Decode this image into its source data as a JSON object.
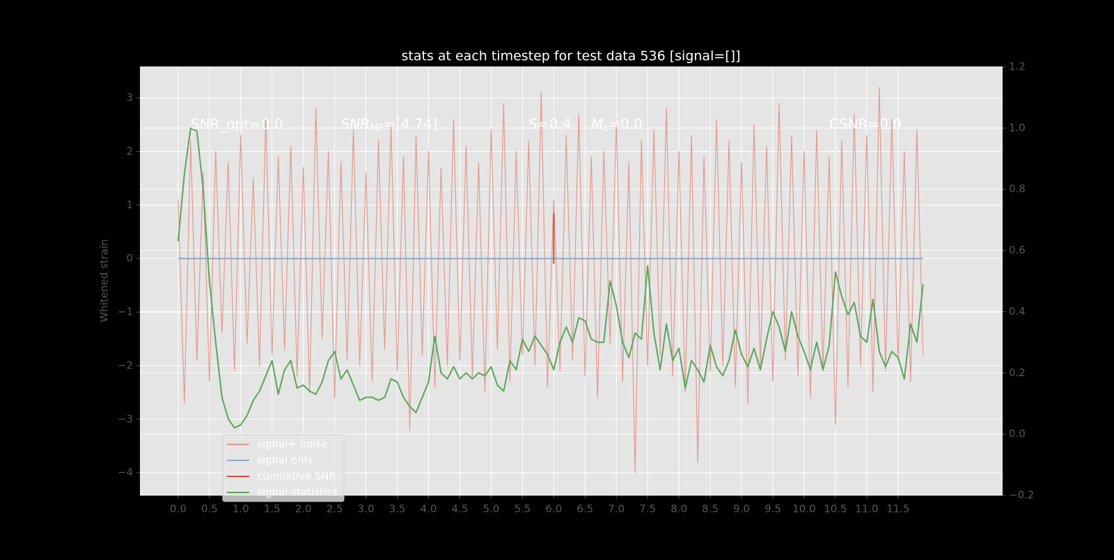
{
  "chart_data": {
    "type": "line",
    "title": "stats at each timestep for test data 536 [signal=[]]",
    "ylabel": "Whitened strain",
    "annotations": [
      {
        "text": "SNR_opt=0.0"
      },
      {
        "text": "SNR",
        "sub": "MF",
        "after": "=[4.74]"
      },
      {
        "text": "S",
        "after": "=0.4"
      },
      {
        "text": "M",
        "sub": "c",
        "after": "=0.0"
      },
      {
        "text": "CSNR=0.0"
      }
    ],
    "x": [
      0.0,
      0.1,
      0.2,
      0.3,
      0.4,
      0.5,
      0.6,
      0.7,
      0.8,
      0.9,
      1.0,
      1.1,
      1.2,
      1.3,
      1.4,
      1.5,
      1.6,
      1.7,
      1.8,
      1.9,
      2.0,
      2.1,
      2.2,
      2.3,
      2.4,
      2.5,
      2.6,
      2.7,
      2.8,
      2.9,
      3.0,
      3.1,
      3.2,
      3.3,
      3.4,
      3.5,
      3.6,
      3.7,
      3.8,
      3.9,
      4.0,
      4.1,
      4.2,
      4.3,
      4.4,
      4.5,
      4.6,
      4.7,
      4.8,
      4.9,
      5.0,
      5.1,
      5.2,
      5.3,
      5.4,
      5.5,
      5.6,
      5.7,
      5.8,
      5.9,
      6.0,
      6.1,
      6.2,
      6.3,
      6.4,
      6.5,
      6.6,
      6.7,
      6.8,
      6.9,
      7.0,
      7.1,
      7.2,
      7.3,
      7.4,
      7.5,
      7.6,
      7.7,
      7.8,
      7.9,
      8.0,
      8.1,
      8.2,
      8.3,
      8.4,
      8.5,
      8.6,
      8.7,
      8.8,
      8.9,
      9.0,
      9.1,
      9.2,
      9.3,
      9.4,
      9.5,
      9.6,
      9.7,
      9.8,
      9.9,
      10.0,
      10.1,
      10.2,
      10.3,
      10.4,
      10.5,
      10.6,
      10.7,
      10.8,
      10.9,
      11.0,
      11.1,
      11.2,
      11.3,
      11.4,
      11.5,
      11.6,
      11.7,
      11.8,
      11.9
    ],
    "series": [
      {
        "name": "signal+ noise",
        "color": "#e49a8c",
        "values": [
          1.1,
          -2.7,
          2.2,
          -1.9,
          1.6,
          -2.3,
          2.0,
          -1.4,
          1.8,
          -2.1,
          2.3,
          -1.6,
          1.5,
          -2.0,
          2.6,
          -1.8,
          1.9,
          -1.7,
          2.1,
          -2.2,
          1.7,
          -2.5,
          2.8,
          -1.5,
          2.0,
          -2.6,
          1.8,
          -1.9,
          2.4,
          -2.0,
          1.6,
          -2.3,
          2.2,
          -1.7,
          2.5,
          -2.1,
          1.9,
          -3.2,
          2.3,
          -1.8,
          2.0,
          -2.4,
          1.7,
          -2.0,
          2.6,
          -1.9,
          2.1,
          -2.2,
          1.8,
          -2.5,
          2.4,
          -1.7,
          2.9,
          -2.3,
          2.0,
          -1.8,
          2.2,
          -2.0,
          3.1,
          -2.4,
          1.1,
          -2.1,
          2.3,
          -1.9,
          2.7,
          -2.2,
          1.9,
          -2.6,
          2.0,
          -1.6,
          2.5,
          -2.3,
          1.8,
          -4.0,
          2.2,
          -2.0,
          2.4,
          -1.8,
          2.8,
          -2.2,
          2.0,
          -2.5,
          2.3,
          -3.8,
          1.9,
          -2.1,
          2.6,
          -2.0,
          2.2,
          -2.4,
          1.8,
          -2.7,
          2.5,
          -2.0,
          2.1,
          -2.3,
          2.9,
          -1.9,
          2.3,
          -2.2,
          2.0,
          -2.6,
          2.4,
          -2.1,
          1.9,
          -3.1,
          2.2,
          -2.4,
          2.7,
          -2.0,
          2.3,
          -2.5,
          3.2,
          -2.1,
          2.6,
          -1.9,
          2.0,
          -2.3,
          2.4,
          -1.8
        ]
      },
      {
        "name": "signal only",
        "color": "#8fa9c7",
        "values": [
          0,
          0,
          0,
          0,
          0,
          0,
          0,
          0,
          0,
          0,
          0,
          0,
          0,
          0,
          0,
          0,
          0,
          0,
          0,
          0,
          0,
          0,
          0,
          0,
          0,
          0,
          0,
          0,
          0,
          0,
          0,
          0,
          0,
          0,
          0,
          0,
          0,
          0,
          0,
          0,
          0,
          0,
          0,
          0,
          0,
          0,
          0,
          0,
          0,
          0,
          0,
          0,
          0,
          0,
          0,
          0,
          0,
          0,
          0,
          0,
          0,
          0,
          0,
          0,
          0,
          0,
          0,
          0,
          0,
          0,
          0,
          0,
          0,
          0,
          0,
          0,
          0,
          0,
          0,
          0,
          0,
          0,
          0,
          0,
          0,
          0,
          0,
          0,
          0,
          0,
          0,
          0,
          0,
          0,
          0,
          0,
          0,
          0,
          0,
          0,
          0,
          0,
          0,
          0,
          0,
          0,
          0,
          0,
          0,
          0,
          0,
          0,
          0,
          0,
          0,
          0,
          0,
          0,
          0,
          0
        ]
      },
      {
        "name": "cumilative SNR",
        "color": "#e24a33",
        "x": [
          6.0,
          6.0
        ],
        "values": [
          0.85,
          -0.1
        ]
      },
      {
        "name": "signal statistics",
        "color": "#5aa55a",
        "axis": "y2",
        "values": [
          0.63,
          0.85,
          1.0,
          0.99,
          0.8,
          0.5,
          0.3,
          0.12,
          0.05,
          0.02,
          0.03,
          0.06,
          0.11,
          0.14,
          0.19,
          0.24,
          0.13,
          0.21,
          0.24,
          0.15,
          0.16,
          0.14,
          0.13,
          0.17,
          0.24,
          0.27,
          0.18,
          0.21,
          0.16,
          0.11,
          0.12,
          0.12,
          0.11,
          0.12,
          0.18,
          0.17,
          0.12,
          0.09,
          0.07,
          0.12,
          0.17,
          0.32,
          0.2,
          0.18,
          0.22,
          0.18,
          0.2,
          0.18,
          0.2,
          0.19,
          0.22,
          0.16,
          0.14,
          0.24,
          0.21,
          0.31,
          0.27,
          0.32,
          0.29,
          0.26,
          0.21,
          0.3,
          0.35,
          0.3,
          0.38,
          0.37,
          0.31,
          0.3,
          0.3,
          0.5,
          0.42,
          0.3,
          0.25,
          0.33,
          0.31,
          0.55,
          0.33,
          0.21,
          0.36,
          0.24,
          0.28,
          0.15,
          0.24,
          0.21,
          0.17,
          0.29,
          0.22,
          0.19,
          0.24,
          0.34,
          0.26,
          0.22,
          0.28,
          0.21,
          0.31,
          0.4,
          0.35,
          0.27,
          0.4,
          0.32,
          0.27,
          0.21,
          0.3,
          0.21,
          0.29,
          0.53,
          0.45,
          0.39,
          0.43,
          0.32,
          0.3,
          0.44,
          0.27,
          0.22,
          0.27,
          0.25,
          0.18,
          0.36,
          0.3,
          0.49
        ]
      }
    ],
    "xlim": [
      -0.61,
      13.17
    ],
    "xticks": [
      {
        "value": 0,
        "label": "0.0"
      },
      0.5,
      {
        "value": 1,
        "label": "1.0"
      },
      1.5,
      {
        "value": 2,
        "label": "2.0"
      },
      2.5,
      {
        "value": 3,
        "label": "3.0"
      },
      3.5,
      {
        "value": 4,
        "label": "4.0"
      },
      4.5,
      {
        "value": 5,
        "label": "5.0"
      },
      5.5,
      {
        "value": 6,
        "label": "6.0"
      },
      6.5,
      {
        "value": 7,
        "label": "7.0"
      },
      7.5,
      {
        "value": 8,
        "label": "8.0"
      },
      8.5,
      {
        "value": 9,
        "label": "9.0"
      },
      9.5,
      {
        "value": 10,
        "label": "10.0"
      },
      10.5,
      {
        "value": 11,
        "label": "11.0"
      },
      11.5
    ],
    "ylim": [
      -4.42,
      3.58
    ],
    "yticks": [
      {
        "value": -4,
        "label": "−4"
      },
      {
        "value": -3,
        "label": "−3"
      },
      {
        "value": -2,
        "label": "−2"
      },
      {
        "value": -1,
        "label": "−1"
      },
      0,
      1,
      2,
      3
    ],
    "y2lim": [
      -0.2,
      1.2
    ],
    "y2ticks": [
      {
        "value": -0.2,
        "label": "−0.2"
      },
      {
        "value": 0,
        "label": "0.0"
      },
      0.2,
      0.4,
      0.6,
      0.8,
      {
        "value": 1,
        "label": "1.0"
      },
      1.2
    ],
    "grid": true,
    "legend": "lower left"
  }
}
